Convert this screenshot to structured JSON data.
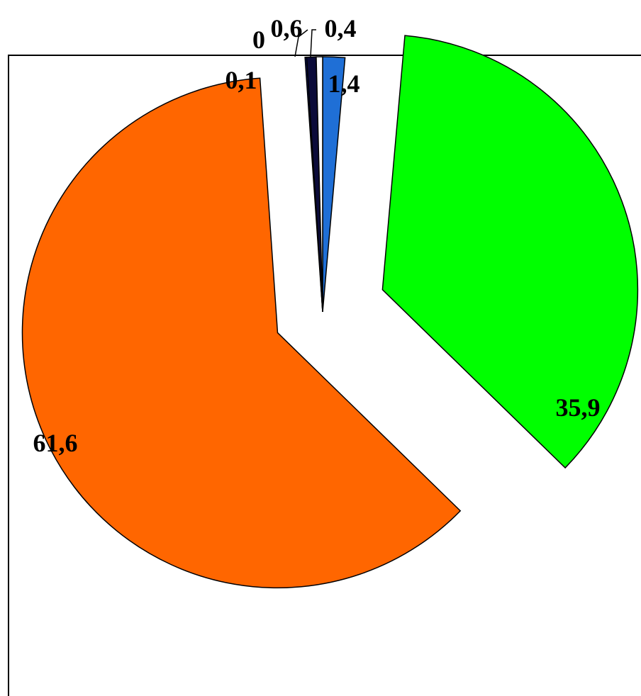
{
  "chart_data": {
    "type": "pie",
    "exploded": true,
    "start": "clockwise from top",
    "slices": [
      {
        "value": 1.4,
        "label": "1,4",
        "color": "#1f6fd6"
      },
      {
        "value": 35.9,
        "label": "35,9",
        "color": "#00ff00"
      },
      {
        "value": 61.6,
        "label": "61,6",
        "color": "#ff6600"
      },
      {
        "value": 0.1,
        "label": "0,1",
        "color": "#0a1f8f"
      },
      {
        "value": 0,
        "label": "0",
        "color": "#000000"
      },
      {
        "value": 0.6,
        "label": "0,6",
        "color": "#0b0b3a"
      },
      {
        "value": 0.4,
        "label": "0,4",
        "color": "#ffffff"
      }
    ]
  }
}
